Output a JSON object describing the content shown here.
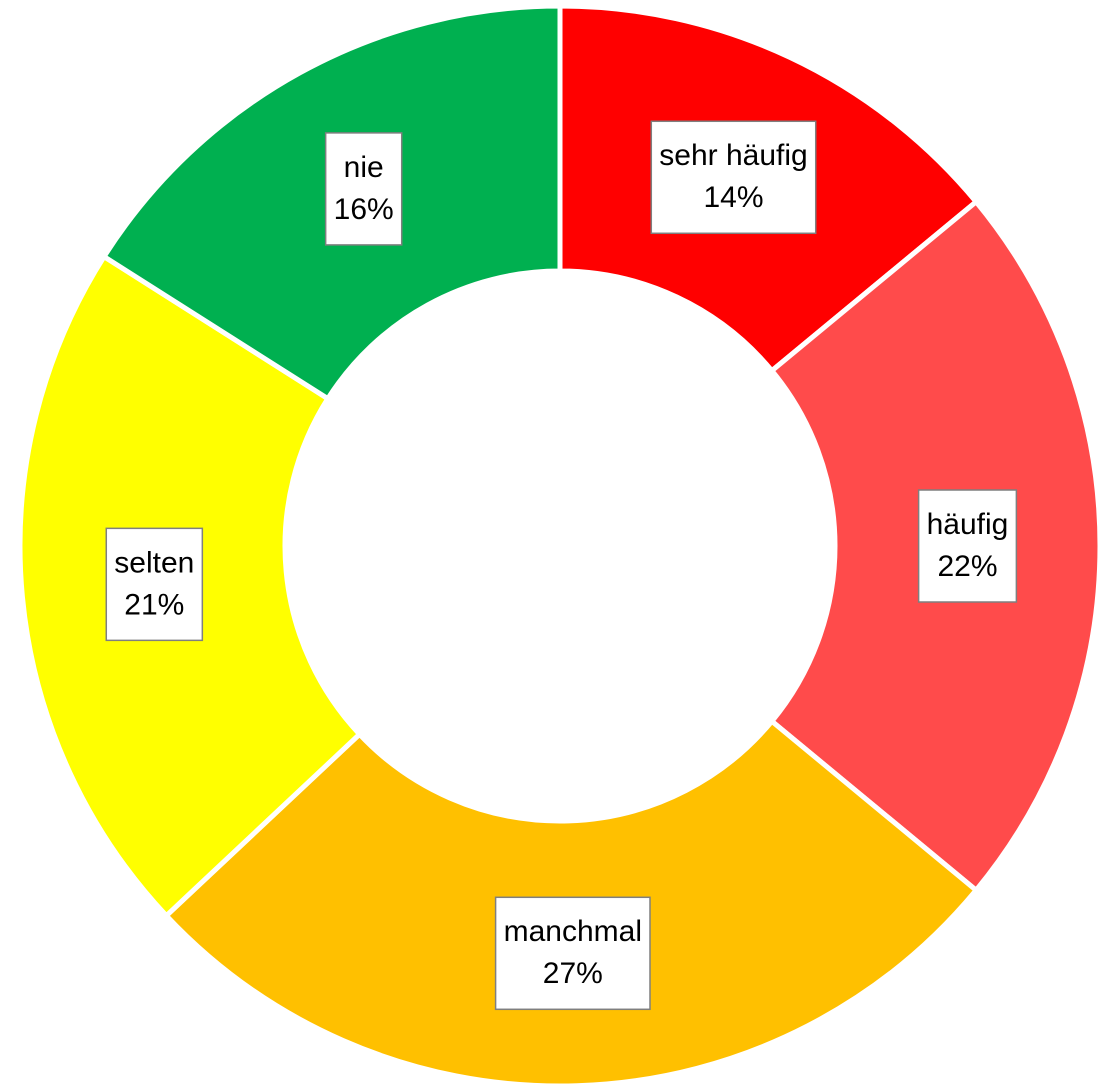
{
  "chart_data": {
    "type": "donut",
    "categories": [
      "sehr häufig",
      "häufig",
      "manchmal",
      "selten",
      "nie"
    ],
    "values": [
      14,
      22,
      27,
      21,
      16
    ],
    "value_labels": [
      "14%",
      "22%",
      "27%",
      "21%",
      "16%"
    ],
    "colors": [
      "#FF0000",
      "#FF4B4B",
      "#FFC000",
      "#FFFF00",
      "#00B050"
    ]
  }
}
